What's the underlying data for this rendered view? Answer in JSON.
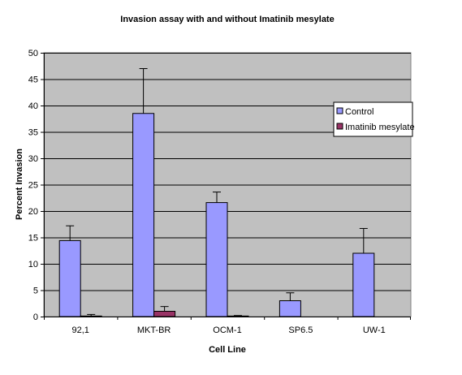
{
  "chart_data": {
    "type": "bar",
    "title": "Invasion assay with and without Imatinib mesylate",
    "xlabel": "Cell Line",
    "ylabel": "Percent Invasion",
    "categories": [
      "92,1",
      "MKT-BR",
      "OCM-1",
      "SP6.5",
      "UW-1"
    ],
    "ylim": [
      0,
      50
    ],
    "yticks": [
      0,
      5,
      10,
      15,
      20,
      25,
      30,
      35,
      40,
      45,
      50
    ],
    "grid": true,
    "legend_position": "right",
    "plot_background": "#c0c0c0",
    "series": [
      {
        "name": "Control",
        "color": "#9999ff",
        "values": [
          14.4,
          38.5,
          21.6,
          3.0,
          12.0
        ],
        "error": [
          2.8,
          8.5,
          2.0,
          1.5,
          4.7
        ]
      },
      {
        "name": "Imatinib mesylate",
        "color": "#993366",
        "values": [
          0.1,
          1.0,
          0.1,
          0,
          0
        ],
        "error": [
          0.3,
          0.9,
          0.1,
          0,
          0
        ]
      }
    ]
  }
}
